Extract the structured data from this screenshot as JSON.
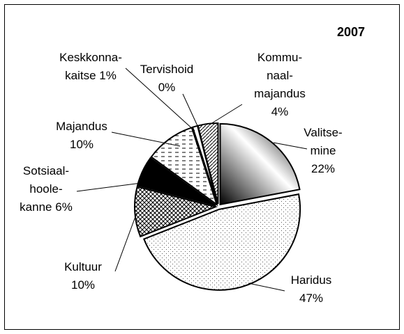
{
  "chart_data": {
    "type": "pie",
    "title": "2007",
    "categories": [
      "Valitse-\nmine",
      "Haridus",
      "Kultuur",
      "Sotsiaal-\nhoole-\nkanne",
      "Majandus",
      "Keskkonna-\nkaitse",
      "Tervishoid",
      "Kommu-\nnaal-\nmajandus"
    ],
    "values": [
      22,
      47,
      10,
      6,
      10,
      1,
      0,
      4
    ],
    "value_labels": [
      "22%",
      "47%",
      "10%",
      "6%",
      "10%",
      "1%",
      "0%",
      "4%"
    ]
  }
}
